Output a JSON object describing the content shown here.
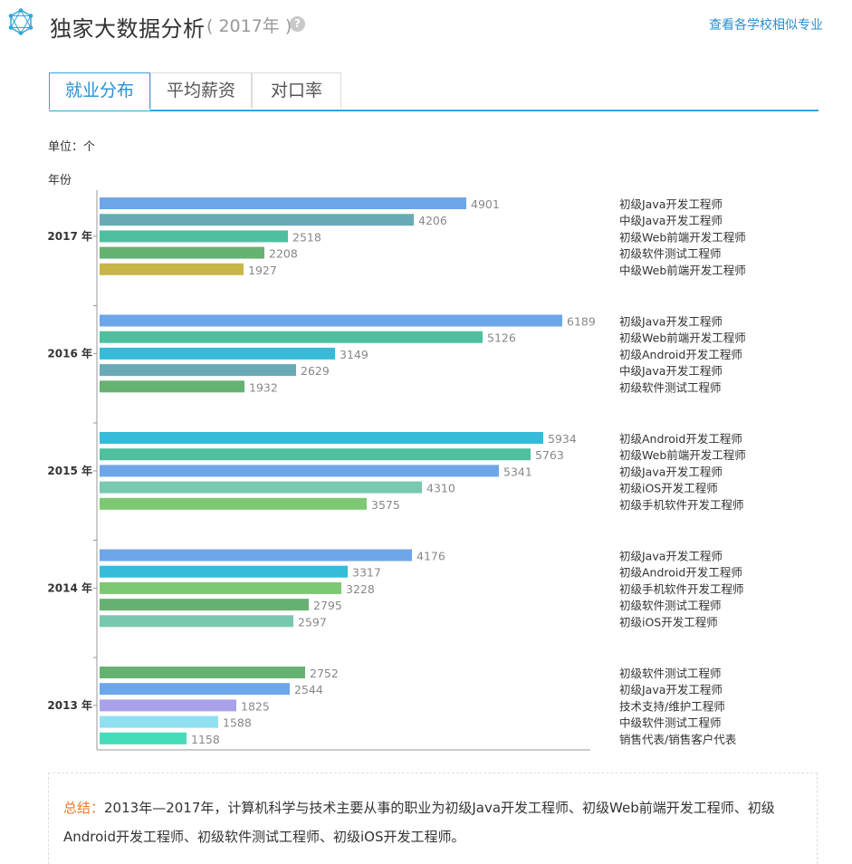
{
  "header": {
    "title": "独家大数据分析",
    "year_note": "( 2017年 )",
    "help_icon": "question-circle-icon",
    "logo_icon": "hexagon-network-icon",
    "link_label": "查看各学校相似专业"
  },
  "tabs": [
    {
      "label": "就业分布",
      "active": true
    },
    {
      "label": "平均薪资",
      "active": false
    },
    {
      "label": "对口率",
      "active": false
    }
  ],
  "unit_label": "单位：个",
  "colors": {
    "accent": "#2ea6df",
    "link": "#2a8fd2",
    "summary_label": "#f07a2e"
  },
  "chart_data": {
    "type": "bar",
    "orientation": "horizontal",
    "ylabel": "年份",
    "xlim": [
      0,
      6300
    ],
    "grid": false,
    "groups": [
      {
        "year": "2017 年",
        "bars": [
          {
            "name": "初级Java开发工程师",
            "value": 4901,
            "color": "#6ea6ea"
          },
          {
            "name": "中级Java开发工程师",
            "value": 4206,
            "color": "#6aaab6"
          },
          {
            "name": "初级Web前端开发工程师",
            "value": 2518,
            "color": "#4fbf9f"
          },
          {
            "name": "初级软件测试工程师",
            "value": 2208,
            "color": "#66b272"
          },
          {
            "name": "中级Web前端开发工程师",
            "value": 1927,
            "color": "#c8b54a"
          }
        ]
      },
      {
        "year": "2016 年",
        "bars": [
          {
            "name": "初级Java开发工程师",
            "value": 6189,
            "color": "#6ea6ea"
          },
          {
            "name": "初级Web前端开发工程师",
            "value": 5126,
            "color": "#4fbf9f"
          },
          {
            "name": "初级Android开发工程师",
            "value": 3149,
            "color": "#36bbd9"
          },
          {
            "name": "中级Java开发工程师",
            "value": 2629,
            "color": "#6aaab6"
          },
          {
            "name": "初级软件测试工程师",
            "value": 1932,
            "color": "#66b272"
          }
        ]
      },
      {
        "year": "2015 年",
        "bars": [
          {
            "name": "初级Android开发工程师",
            "value": 5934,
            "color": "#36bbd9"
          },
          {
            "name": "初级Web前端开发工程师",
            "value": 5763,
            "color": "#4fbf9f"
          },
          {
            "name": "初级Java开发工程师",
            "value": 5341,
            "color": "#6ea6ea"
          },
          {
            "name": "初级iOS开发工程师",
            "value": 4310,
            "color": "#79c8b0"
          },
          {
            "name": "初级手机软件开发工程师",
            "value": 3575,
            "color": "#7dc873"
          }
        ]
      },
      {
        "year": "2014 年",
        "bars": [
          {
            "name": "初级Java开发工程师",
            "value": 4176,
            "color": "#6ea6ea"
          },
          {
            "name": "初级Android开发工程师",
            "value": 3317,
            "color": "#36bbd9"
          },
          {
            "name": "初级手机软件开发工程师",
            "value": 3228,
            "color": "#7dc873"
          },
          {
            "name": "初级软件测试工程师",
            "value": 2795,
            "color": "#66b272"
          },
          {
            "name": "初级iOS开发工程师",
            "value": 2597,
            "color": "#79c8b0"
          }
        ]
      },
      {
        "year": "2013 年",
        "bars": [
          {
            "name": "初级软件测试工程师",
            "value": 2752,
            "color": "#66b272"
          },
          {
            "name": "初级Java开发工程师",
            "value": 2544,
            "color": "#6ea6ea"
          },
          {
            "name": "技术支持/维护工程师",
            "value": 1825,
            "color": "#a9a2ea"
          },
          {
            "name": "中级软件测试工程师",
            "value": 1588,
            "color": "#8fe0f0"
          },
          {
            "name": "销售代表/销售客户代表",
            "value": 1158,
            "color": "#44dcba"
          }
        ]
      }
    ]
  },
  "summary": {
    "label": "总结：",
    "text": "2013年—2017年，计算机科学与技术主要从事的职业为初级Java开发工程师、初级Web前端开发工程师、初级Android开发工程师、初级软件测试工程师、初级iOS开发工程师。"
  }
}
